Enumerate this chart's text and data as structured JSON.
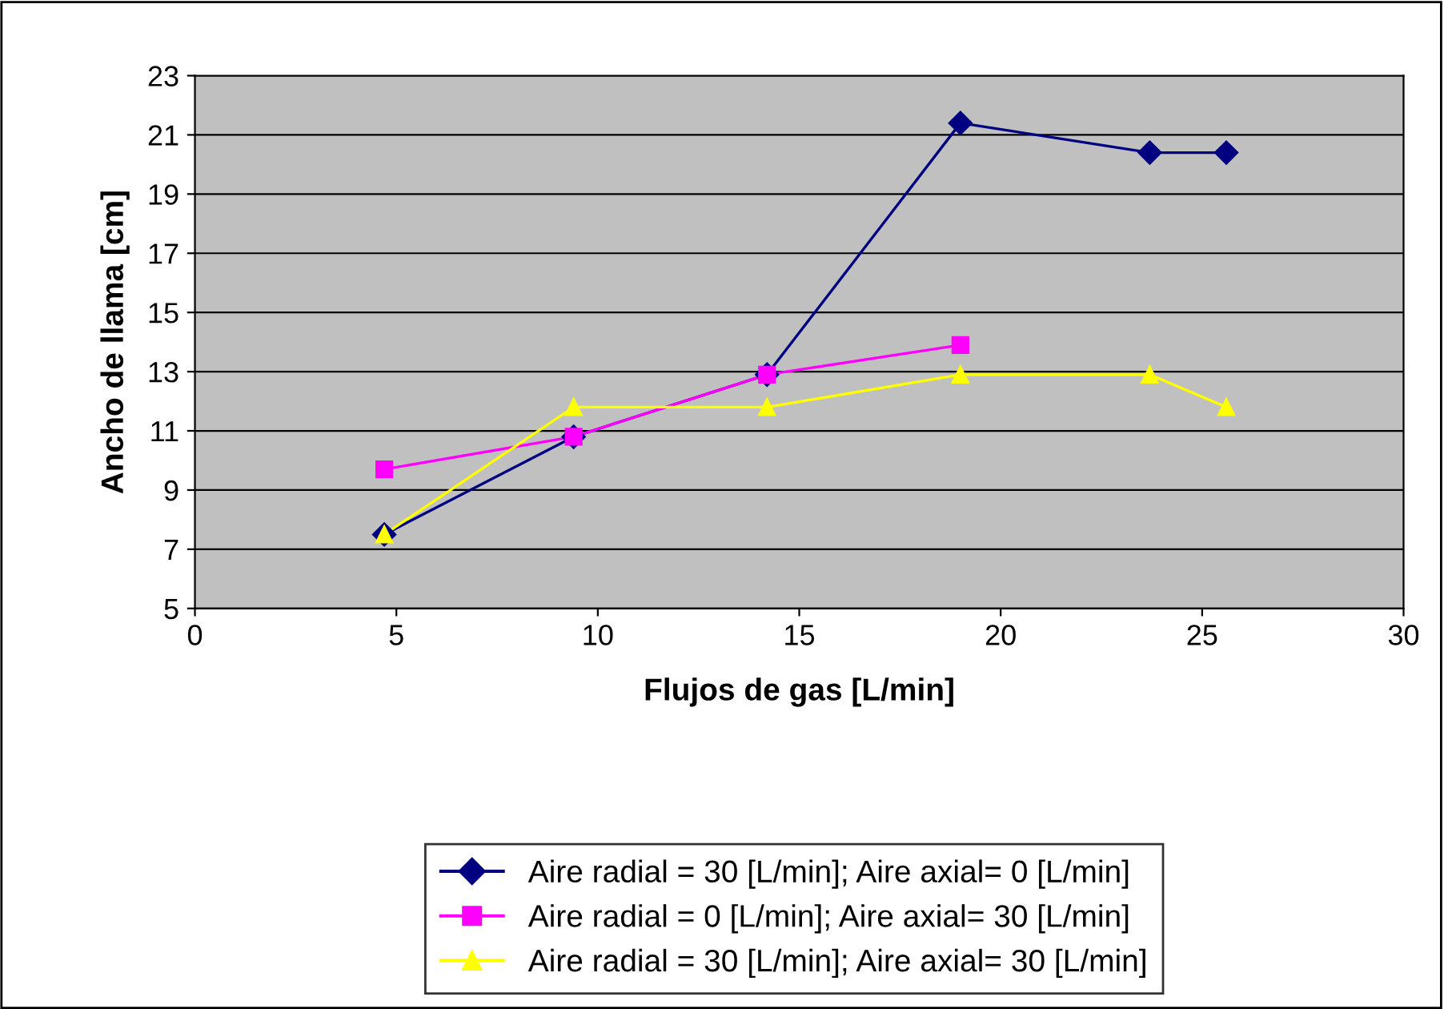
{
  "chart_data": {
    "type": "line",
    "xlabel": "Flujos de gas [L/min]",
    "ylabel": "Ancho de llama [cm]",
    "xlim": [
      0,
      30
    ],
    "xticks": [
      0,
      5,
      10,
      15,
      20,
      25,
      30
    ],
    "ylim": [
      5,
      23
    ],
    "yticks": [
      5,
      7,
      9,
      11,
      13,
      15,
      17,
      19,
      21,
      23
    ],
    "grid": "y",
    "legend": "bottom",
    "line_style": "solid",
    "series": [
      {
        "name": "Aire radial = 30 [L/min]; Aire axial= 0 [L/min]",
        "color": "#000080",
        "marker": "diamond",
        "x": [
          4.7,
          9.4,
          14.2,
          19,
          23.7,
          25.6
        ],
        "values": [
          7.5,
          10.8,
          12.9,
          21.4,
          20.4,
          20.4
        ]
      },
      {
        "name": "Aire radial = 0 [L/min]; Aire axial= 30 [L/min]",
        "color": "#ff00ff",
        "marker": "square",
        "x": [
          4.7,
          9.4,
          14.2,
          19
        ],
        "values": [
          9.7,
          10.8,
          12.9,
          13.9
        ]
      },
      {
        "name": "Aire radial = 30 [L/min]; Aire axial= 30 [L/min]",
        "color": "#ffff00",
        "marker": "triangle",
        "x": [
          4.7,
          9.4,
          14.2,
          19,
          23.7,
          25.6
        ],
        "values": [
          7.5,
          11.8,
          11.8,
          12.9,
          12.9,
          11.8
        ]
      }
    ]
  }
}
